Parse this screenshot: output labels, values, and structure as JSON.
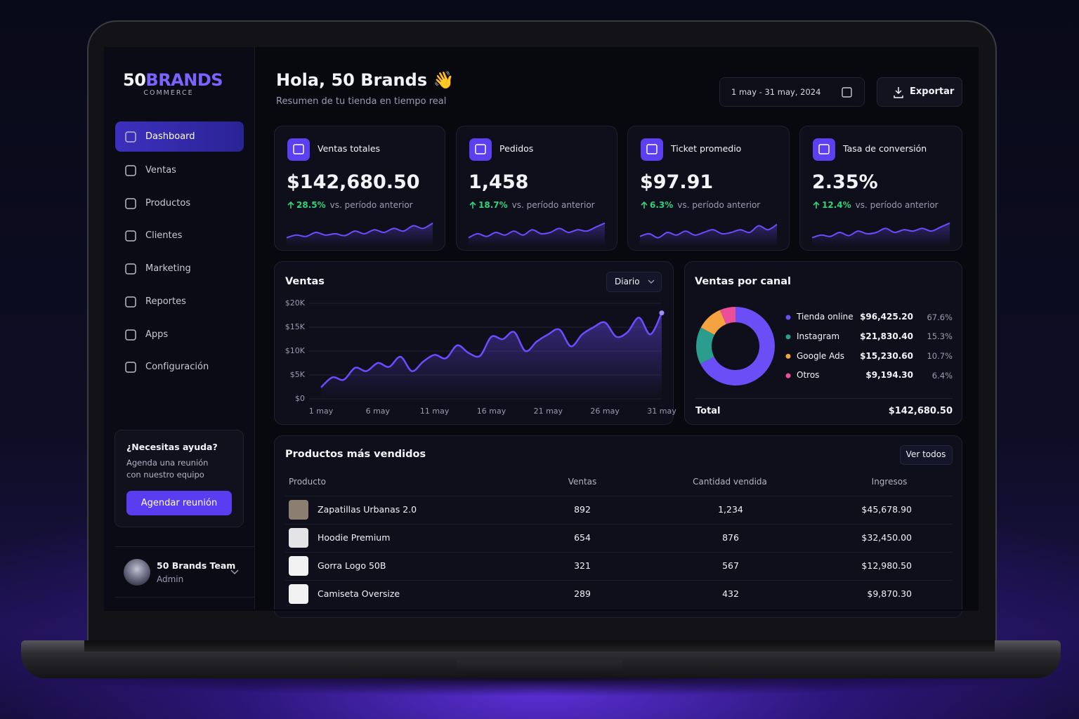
{
  "brand": {
    "lead": "50",
    "accent": "BRANDS",
    "tagline": "COMMERCE"
  },
  "nav": [
    "Dashboard",
    "Ventas",
    "Productos",
    "Clientes",
    "Marketing",
    "Reportes",
    "Apps",
    "Configuración"
  ],
  "help": {
    "title": "¿Necesitas ayuda?",
    "lines": [
      "Agenda una reunión",
      "con nuestro equipo"
    ],
    "button": "Agendar reunión"
  },
  "user": {
    "name": "50 Brands Team",
    "role": "Admin"
  },
  "header": {
    "title": "Hola, 50 Brands 👋",
    "subtitle": "Resumen de tu tienda en tiempo real",
    "date_range": "1 may - 31 may, 2024",
    "export": "Exportar"
  },
  "trend_ylim": [
    0,
    10
  ],
  "kpis": [
    {
      "label": "Ventas totales",
      "value": "$142,680.50",
      "change": "28.5%",
      "note": "vs. período anterior",
      "trend": [
        3,
        4,
        3.5,
        5,
        4,
        4.5,
        3.8,
        5.5,
        4.5,
        6,
        5,
        6.5,
        5.5,
        7.5,
        6.5,
        8.5
      ]
    },
    {
      "label": "Pedidos",
      "value": "1,458",
      "change": "18.7%",
      "note": "vs. período anterior",
      "trend": [
        3,
        4.5,
        3.5,
        5,
        4,
        5.5,
        4,
        6,
        4.5,
        5,
        6.5,
        5,
        6,
        5.5,
        7,
        8.5
      ]
    },
    {
      "label": "Ticket promedio",
      "value": "$97.91",
      "change": "6.3%",
      "note": "vs. período anterior",
      "trend": [
        3.5,
        4.5,
        3,
        5,
        4,
        5.5,
        4,
        5,
        6,
        4.5,
        5,
        6,
        5,
        7.5,
        6,
        8
      ]
    },
    {
      "label": "Tasa de conversión",
      "value": "2.35%",
      "change": "12.4%",
      "note": "vs. período anterior",
      "trend": [
        3,
        4,
        3.5,
        5,
        3.8,
        5.5,
        4.5,
        5,
        6.5,
        5,
        6,
        5.5,
        6.5,
        5.5,
        7,
        8.5
      ]
    }
  ],
  "chart_data": [
    {
      "type": "line",
      "title": "Ventas",
      "period": "Diario",
      "categories": [
        "1 may",
        null,
        null,
        null,
        null,
        "6 may",
        null,
        null,
        null,
        null,
        "11 may",
        null,
        null,
        null,
        null,
        "16 may",
        null,
        null,
        null,
        null,
        "21 may",
        null,
        null,
        null,
        null,
        "26 may",
        null,
        null,
        null,
        null,
        "31 may"
      ],
      "series": [
        {
          "name": "Ventas",
          "color": "#6d4cff",
          "values": [
            2400,
            4500,
            4000,
            6500,
            5800,
            7500,
            6700,
            8800,
            5800,
            7800,
            9200,
            8500,
            11200,
            9600,
            9000,
            13000,
            12500,
            14000,
            10000,
            12000,
            13500,
            14500,
            11000,
            13500,
            15000,
            16000,
            13000,
            14000,
            17000,
            13500,
            18000
          ]
        }
      ],
      "ylim": [
        0,
        20000
      ],
      "yticks": [
        {
          "value": 0,
          "label": "$0"
        },
        {
          "value": 5000,
          "label": "$5K"
        },
        {
          "value": 10000,
          "label": "$10K"
        },
        {
          "value": 15000,
          "label": "$15K"
        },
        {
          "value": 20000,
          "label": "$20K"
        }
      ],
      "grid": true
    },
    {
      "type": "pie",
      "title": "Ventas por canal",
      "categories": [
        "Tienda online",
        "Instagram",
        "Google Ads",
        "Otros"
      ],
      "values": [
        96425.2,
        21830.4,
        15230.6,
        9194.3
      ],
      "value_labels": [
        "$96,425.20",
        "$21,830.40",
        "$15,230.60",
        "$9,194.30"
      ],
      "shares": [
        67.6,
        15.3,
        10.7,
        6.4
      ],
      "share_labels": [
        "67.6%",
        "15.3%",
        "10.7%",
        "6.4%"
      ],
      "colors": [
        "#6b4ef6",
        "#2a9d8f",
        "#f4a340",
        "#ec4f9a"
      ],
      "total": {
        "label": "Total",
        "value": "$142,680.50"
      }
    }
  ],
  "products": {
    "title": "Productos más vendidos",
    "button": "Ver todos",
    "columns": [
      "Producto",
      "Ventas",
      "Cantidad vendida",
      "Ingresos"
    ],
    "rows": [
      [
        "Zapatillas Urbanas 2.0",
        "892",
        "1,234",
        "$45,678.90"
      ],
      [
        "Hoodie Premium",
        "654",
        "876",
        "$32,450.00"
      ],
      [
        "Gorra Logo 50B",
        "321",
        "567",
        "$12,980.50"
      ],
      [
        "Camiseta Oversize",
        "289",
        "432",
        "$9,870.30"
      ]
    ]
  }
}
